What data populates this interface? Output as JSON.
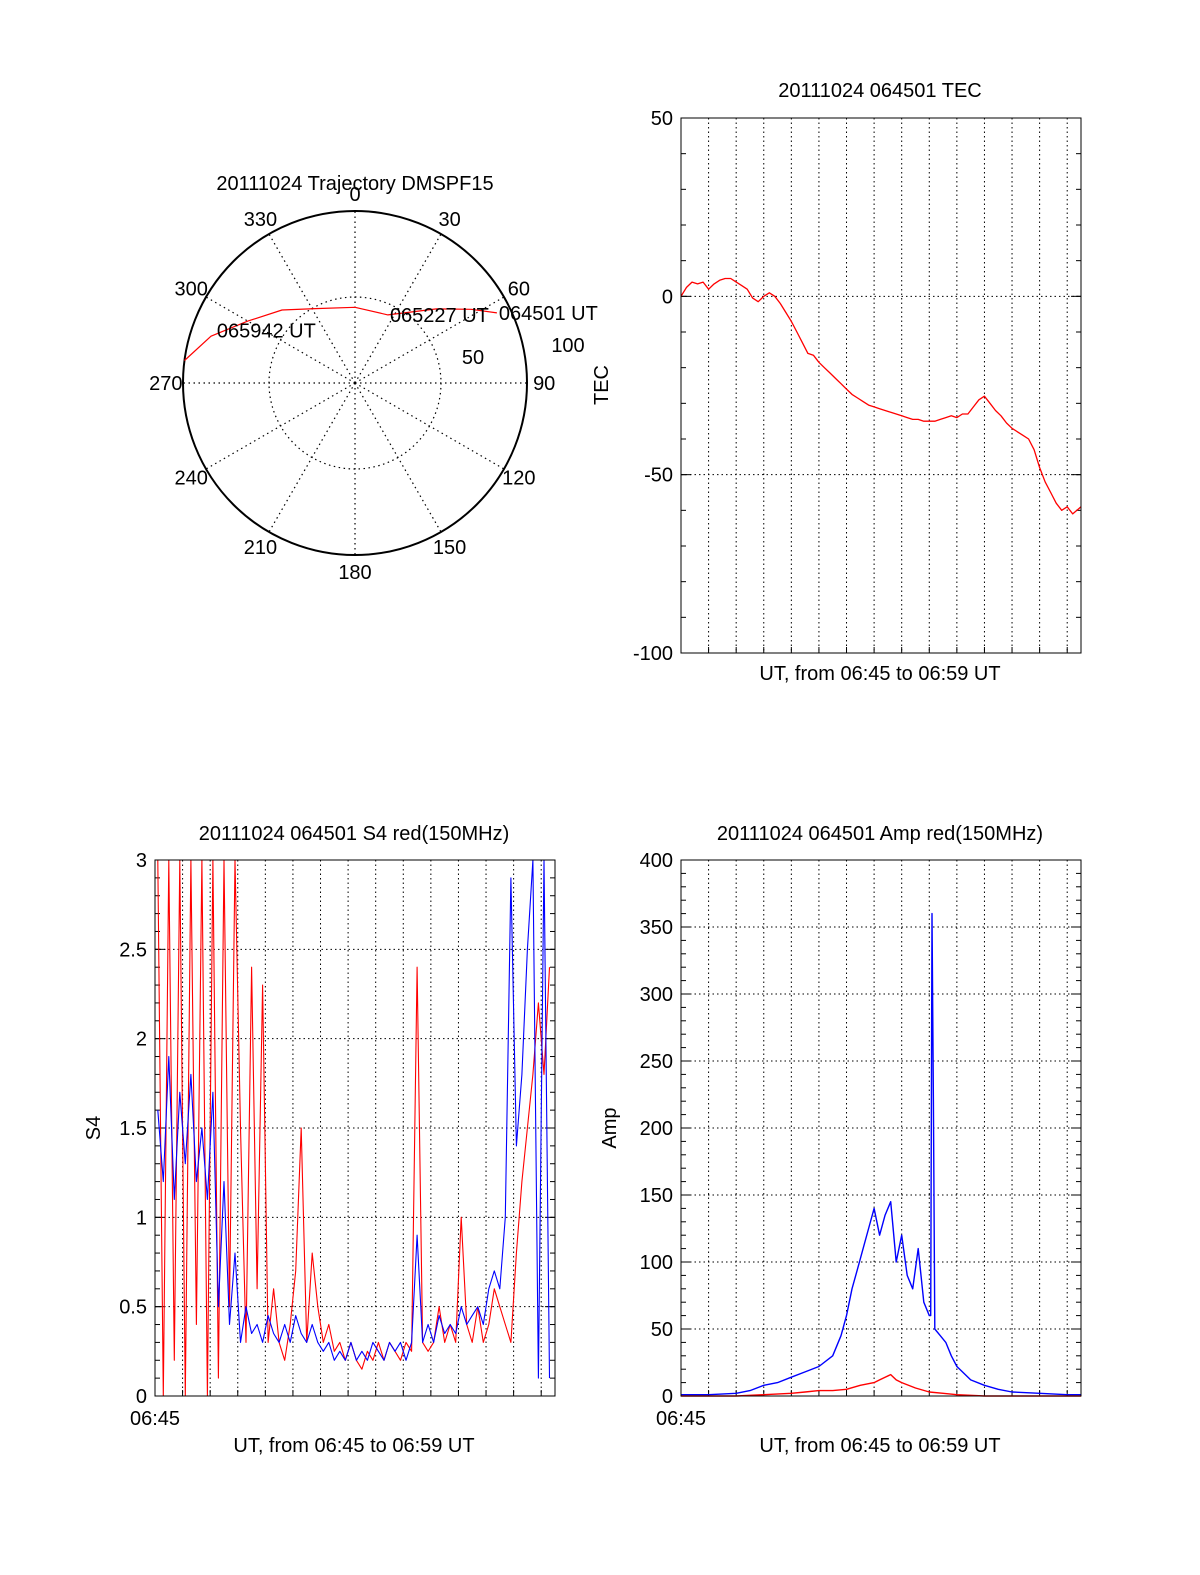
{
  "chart_data": [
    {
      "type": "polar",
      "title": "20111024 Trajectory DMSPF15",
      "angle_labels": [
        "0",
        "30",
        "60",
        "90",
        "120",
        "150",
        "180",
        "210",
        "240",
        "270",
        "300",
        "330"
      ],
      "radius_labels": [
        "50",
        "100"
      ],
      "rmax": 100,
      "trajectory": {
        "color": "#ff0000",
        "points": [
          [
            63.7,
            92
          ],
          [
            57.6,
            80
          ],
          [
            47.7,
            64
          ],
          [
            25.8,
            44
          ],
          [
            0,
            44
          ],
          [
            -28,
            49
          ],
          [
            -45,
            60
          ],
          [
            -60,
            72
          ],
          [
            -72,
            88
          ],
          [
            -82.5,
            100
          ]
        ]
      },
      "annotations": [
        {
          "text": "064501 UT",
          "az": 63.7,
          "r": 92
        },
        {
          "text": "065227 UT",
          "az": 25.8,
          "r": 44
        },
        {
          "text": "065942 UT",
          "az": -69.5,
          "r": 87
        }
      ]
    },
    {
      "type": "line",
      "title": "20111024 064501 TEC",
      "xlabel": "UT, from 06:45 to 06:59 UT",
      "ylabel": "TEC",
      "xlim": [
        0,
        14.5
      ],
      "ylim": [
        -100,
        50
      ],
      "yticks": [
        "-100",
        "-50",
        "0",
        "50"
      ],
      "grid": true,
      "series": [
        {
          "color": "#ff0000",
          "x": [
            0,
            0.2,
            0.4,
            0.6,
            0.8,
            1.0,
            1.2,
            1.4,
            1.6,
            1.8,
            2.0,
            2.2,
            2.4,
            2.6,
            2.8,
            3.0,
            3.2,
            3.4,
            3.6,
            3.8,
            4.0,
            4.2,
            4.4,
            4.6,
            4.8,
            5.0,
            5.2,
            5.4,
            5.6,
            5.8,
            6.0,
            6.2,
            6.4,
            6.6,
            6.8,
            7.0,
            7.2,
            7.4,
            7.6,
            7.8,
            8.0,
            8.2,
            8.4,
            8.6,
            8.8,
            9.0,
            9.2,
            9.4,
            9.6,
            9.8,
            10.0,
            10.2,
            10.4,
            10.6,
            10.8,
            11.0,
            11.2,
            11.4,
            11.6,
            11.8,
            12.0,
            12.2,
            12.4,
            12.6,
            12.8,
            13.0,
            13.2,
            13.4,
            13.6,
            13.8,
            14.0,
            14.2,
            14.5
          ],
          "y": [
            0,
            2.5,
            4,
            3.5,
            4,
            2,
            3.5,
            4.5,
            5,
            5,
            4,
            3,
            2,
            -0.5,
            -1.5,
            0,
            1,
            0,
            -2,
            -4.5,
            -7,
            -10,
            -13,
            -16,
            -16.5,
            -18.5,
            -20,
            -21.5,
            -23,
            -24.5,
            -26,
            -27.5,
            -28.5,
            -29.5,
            -30.5,
            -31,
            -31.5,
            -32,
            -32.5,
            -33,
            -33.5,
            -34,
            -34.5,
            -34.5,
            -35,
            -35,
            -35,
            -34.5,
            -34,
            -33.5,
            -34,
            -33,
            -33,
            -31,
            -29,
            -28,
            -30,
            -32,
            -33.5,
            -35.5,
            -37,
            -38,
            -39,
            -40,
            -43,
            -48,
            -52,
            -55,
            -58,
            -60,
            -59,
            -61,
            -59
          ]
        }
      ]
    },
    {
      "type": "line",
      "title": "20111024 064501 S4 red(150MHz)",
      "xlabel": "UT, from 06:45 to 06:59 UT",
      "ylabel": "S4",
      "xtick_label": "06:45",
      "xlim": [
        0,
        14.5
      ],
      "ylim": [
        0,
        3
      ],
      "yticks": [
        "0",
        "0.5",
        "1",
        "1.5",
        "2",
        "2.5",
        "3"
      ],
      "grid": true,
      "series": [
        {
          "color": "#ff0000",
          "x": [
            0.1,
            0.3,
            0.5,
            0.7,
            0.9,
            1.1,
            1.3,
            1.5,
            1.7,
            1.9,
            2.1,
            2.3,
            2.5,
            2.7,
            2.9,
            3.1,
            3.3,
            3.5,
            3.7,
            3.9,
            4.1,
            4.3,
            4.5,
            4.7,
            4.9,
            5.1,
            5.3,
            5.5,
            5.7,
            5.9,
            6.1,
            6.3,
            6.5,
            6.7,
            6.9,
            7.1,
            7.3,
            7.5,
            7.7,
            7.9,
            8.1,
            8.3,
            8.5,
            8.7,
            8.9,
            9.1,
            9.3,
            9.5,
            9.7,
            9.9,
            10.1,
            10.3,
            10.5,
            10.7,
            10.9,
            11.1,
            11.3,
            11.5,
            11.7,
            11.9,
            12.1,
            12.3,
            12.5,
            12.7,
            12.9,
            13.1,
            13.3,
            13.5,
            13.7,
            13.9,
            14.1,
            14.3
          ],
          "y": [
            3,
            0,
            3,
            0.2,
            3,
            0,
            3,
            0.4,
            3,
            0,
            3,
            0.1,
            3,
            0.5,
            3,
            1.5,
            0.3,
            2.4,
            0.6,
            2.3,
            0.3,
            0.6,
            0.3,
            0.2,
            0.4,
            0.7,
            1.5,
            0.3,
            0.8,
            0.5,
            0.3,
            0.4,
            0.25,
            0.3,
            0.2,
            0.3,
            0.2,
            0.15,
            0.25,
            0.2,
            0.3,
            0.2,
            0.3,
            0.25,
            0.2,
            0.3,
            0.25,
            2.4,
            0.3,
            0.25,
            0.3,
            0.5,
            0.3,
            0.4,
            0.3,
            1.0,
            0.4,
            0.3,
            0.5,
            0.3,
            0.4,
            0.6,
            0.5,
            0.4,
            0.3,
            0.8,
            1.2,
            1.5,
            1.8,
            2.2,
            1.8,
            2.4
          ]
        },
        {
          "color": "#0000ff",
          "x": [
            0.1,
            0.3,
            0.5,
            0.7,
            0.9,
            1.1,
            1.3,
            1.5,
            1.7,
            1.9,
            2.1,
            2.3,
            2.5,
            2.7,
            2.9,
            3.1,
            3.3,
            3.5,
            3.7,
            3.9,
            4.1,
            4.3,
            4.5,
            4.7,
            4.9,
            5.1,
            5.3,
            5.5,
            5.7,
            5.9,
            6.1,
            6.3,
            6.5,
            6.7,
            6.9,
            7.1,
            7.3,
            7.5,
            7.7,
            7.9,
            8.1,
            8.3,
            8.5,
            8.7,
            8.9,
            9.1,
            9.3,
            9.5,
            9.7,
            9.9,
            10.1,
            10.3,
            10.5,
            10.7,
            10.9,
            11.1,
            11.3,
            11.5,
            11.7,
            11.9,
            12.1,
            12.3,
            12.5,
            12.7,
            12.9,
            13.1,
            13.3,
            13.5,
            13.7,
            13.9,
            14.1,
            14.3
          ],
          "y": [
            1.6,
            1.2,
            1.9,
            1.1,
            1.7,
            1.3,
            1.8,
            1.2,
            1.5,
            1.1,
            1.7,
            0.5,
            1.2,
            0.4,
            0.8,
            0.3,
            0.5,
            0.35,
            0.4,
            0.3,
            0.45,
            0.35,
            0.3,
            0.4,
            0.3,
            0.45,
            0.35,
            0.3,
            0.4,
            0.3,
            0.25,
            0.3,
            0.2,
            0.25,
            0.2,
            0.3,
            0.2,
            0.25,
            0.2,
            0.3,
            0.25,
            0.2,
            0.3,
            0.25,
            0.3,
            0.2,
            0.3,
            0.9,
            0.3,
            0.4,
            0.3,
            0.45,
            0.35,
            0.4,
            0.35,
            0.5,
            0.4,
            0.45,
            0.5,
            0.4,
            0.6,
            0.7,
            0.6,
            1.0,
            2.9,
            1.4,
            1.8,
            2.5,
            3,
            0.1,
            3,
            0.1
          ]
        }
      ]
    },
    {
      "type": "line",
      "title": "20111024 064501 Amp red(150MHz)",
      "xlabel": "UT, from 06:45 to 06:59 UT",
      "ylabel": "Amp",
      "xtick_label": "06:45",
      "xlim": [
        0,
        14.5
      ],
      "ylim": [
        0,
        400
      ],
      "yticks": [
        "0",
        "50",
        "100",
        "150",
        "200",
        "250",
        "300",
        "350",
        "400"
      ],
      "grid": true,
      "series": [
        {
          "color": "#0000ff",
          "x": [
            0,
            1,
            2,
            2.5,
            3,
            3.5,
            4,
            4.5,
            5,
            5.5,
            5.8,
            6,
            6.2,
            6.4,
            6.6,
            6.8,
            7,
            7.2,
            7.4,
            7.6,
            7.8,
            8,
            8.2,
            8.4,
            8.6,
            8.8,
            9,
            9.05,
            9.1,
            9.15,
            9.2,
            9.4,
            9.6,
            9.8,
            10,
            10.5,
            11,
            11.5,
            12,
            13,
            14,
            14.5
          ],
          "y": [
            1,
            1,
            2,
            4,
            8,
            10,
            14,
            18,
            22,
            30,
            45,
            60,
            80,
            95,
            110,
            125,
            140,
            120,
            135,
            145,
            100,
            120,
            90,
            80,
            110,
            70,
            60,
            60,
            360,
            220,
            50,
            45,
            40,
            30,
            22,
            12,
            8,
            5,
            3,
            2,
            1,
            1
          ]
        },
        {
          "color": "#ff0000",
          "x": [
            0,
            2,
            3,
            4,
            4.5,
            5,
            5.5,
            6,
            6.5,
            7,
            7.2,
            7.4,
            7.6,
            7.8,
            8,
            8.5,
            9,
            9.5,
            10,
            11,
            12,
            14.5
          ],
          "y": [
            0,
            0,
            1,
            2,
            3,
            4,
            4,
            5,
            8,
            10,
            12,
            14,
            16,
            12,
            10,
            6,
            3,
            2,
            1,
            0,
            0,
            0
          ]
        }
      ]
    }
  ]
}
